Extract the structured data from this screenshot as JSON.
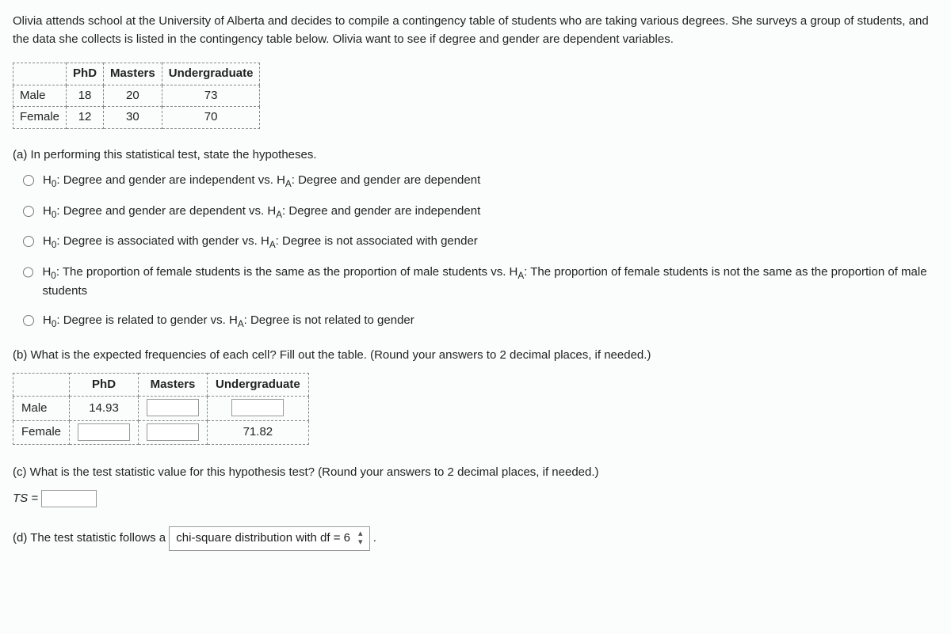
{
  "intro": "Olivia attends school at the University of Alberta and decides to compile a contingency table of students who are taking various degrees. She surveys a group of students, and the data she collects is listed in the contingency table below. Olivia want to see if degree and gender are dependent variables.",
  "contingency": {
    "columns": [
      "PhD",
      "Masters",
      "Undergraduate"
    ],
    "rows": [
      {
        "label": "Male",
        "values": [
          "18",
          "20",
          "73"
        ]
      },
      {
        "label": "Female",
        "values": [
          "12",
          "30",
          "70"
        ]
      }
    ]
  },
  "partA": {
    "prompt": "(a) In performing this statistical test, state the hypotheses.",
    "options": [
      {
        "h0": "Degree and gender are independent",
        "ha": "Degree and gender are dependent"
      },
      {
        "h0": "Degree and gender are dependent",
        "ha": "Degree and gender are independent"
      },
      {
        "h0": "Degree is associated with gender",
        "ha": "Degree is not associated with gender"
      },
      {
        "h0": "The proportion of female students is the same as the proportion of male students",
        "ha": "The proportion of female students is not the same as the proportion of male students"
      },
      {
        "h0": "Degree is related to gender",
        "ha": "Degree is not related to gender"
      }
    ]
  },
  "partB": {
    "prompt": "(b) What is the expected frequencies of each cell?  Fill out the table. (Round your answers to 2 decimal places, if needed.)",
    "columns": [
      "PhD",
      "Masters",
      "Undergraduate"
    ],
    "rows": [
      {
        "label": "Male",
        "cells": [
          {
            "type": "value",
            "value": "14.93"
          },
          {
            "type": "input"
          },
          {
            "type": "input"
          }
        ]
      },
      {
        "label": "Female",
        "cells": [
          {
            "type": "input"
          },
          {
            "type": "input"
          },
          {
            "type": "value",
            "value": "71.82"
          }
        ]
      }
    ]
  },
  "partC": {
    "prompt": "(c) What is the test statistic value for this hypothesis test? (Round your answers to 2 decimal places, if needed.)",
    "tsLabel": "TS ="
  },
  "partD": {
    "textBefore": "(d) The test statistic follows a",
    "dropdownValue": "chi-square distribution with df = 6",
    "textAfter": "."
  }
}
